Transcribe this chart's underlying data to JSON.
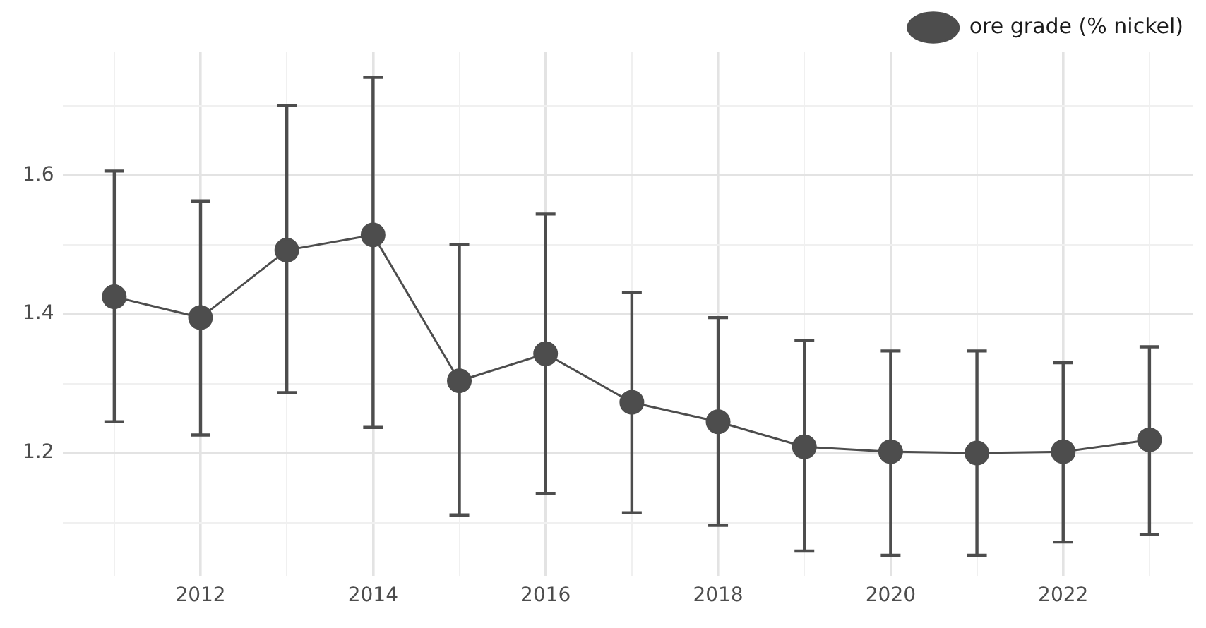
{
  "chart_data": {
    "type": "line",
    "x": [
      2011,
      2012,
      2013,
      2014,
      2015,
      2016,
      2017,
      2018,
      2019,
      2020,
      2021,
      2022,
      2023
    ],
    "series": [
      {
        "name": "ore grade (% nickel)",
        "color": "#4d4d4d",
        "values": [
          1.425,
          1.395,
          1.492,
          1.514,
          1.304,
          1.343,
          1.273,
          1.245,
          1.209,
          1.202,
          1.2,
          1.202,
          1.219
        ],
        "errors": [
          [
            1.245,
            1.606
          ],
          [
            1.226,
            1.563
          ],
          [
            1.287,
            1.7
          ],
          [
            1.237,
            1.741
          ],
          [
            1.111,
            1.5
          ],
          [
            1.142,
            1.544
          ],
          [
            1.114,
            1.431
          ],
          [
            1.096,
            1.395
          ],
          [
            1.059,
            1.362
          ],
          [
            1.053,
            1.347
          ],
          [
            1.053,
            1.347
          ],
          [
            1.072,
            1.33
          ],
          [
            1.083,
            1.353
          ]
        ]
      }
    ],
    "xlim": [
      2010.4,
      2023.5
    ],
    "xticks": [
      {
        "value": 2011,
        "label": null
      },
      2012,
      {
        "value": 2013,
        "label": null
      },
      2014,
      {
        "value": 2015,
        "label": null
      },
      2016,
      {
        "value": 2017,
        "label": null
      },
      2018,
      {
        "value": 2019,
        "label": null
      },
      2020,
      {
        "value": 2021,
        "label": null
      },
      2022,
      {
        "value": 2023,
        "label": null
      }
    ],
    "ylim": [
      1.023,
      1.777
    ],
    "yticks": [
      {
        "value": 1.1,
        "label": null
      },
      {
        "value": 1.2,
        "label": "1.2"
      },
      {
        "value": 1.3,
        "label": null
      },
      {
        "value": 1.4,
        "label": "1.4"
      },
      {
        "value": 1.5,
        "label": null
      },
      {
        "value": 1.6,
        "label": "1.6"
      },
      {
        "value": 1.7,
        "label": null
      }
    ],
    "grid": true,
    "legend": "top right",
    "marker": "circle",
    "line_style": "solid"
  }
}
